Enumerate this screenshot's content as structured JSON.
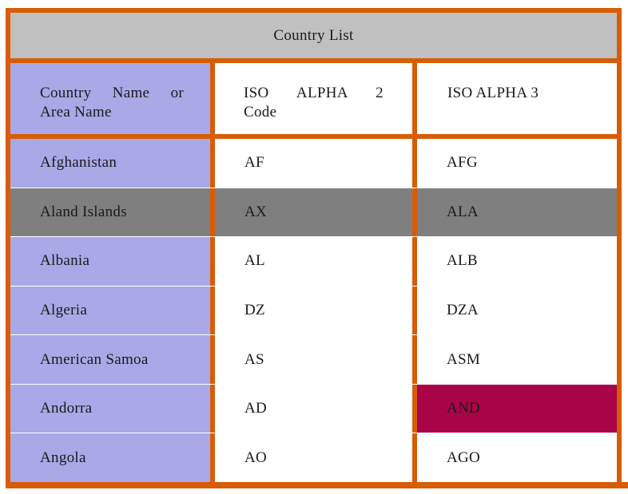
{
  "chart_data": {
    "type": "table",
    "title": "Country List",
    "columns": [
      "Country Name or Area Name",
      "ISO ALPHA 2 Code",
      "ISO ALPHA 3"
    ],
    "rows": [
      [
        "Afghanistan",
        "AF",
        "AFG"
      ],
      [
        "Aland Islands",
        "AX",
        "ALA"
      ],
      [
        "Albania",
        "AL",
        "ALB"
      ],
      [
        "Algeria",
        "DZ",
        "DZA"
      ],
      [
        "American Samoa",
        "AS",
        "ASM"
      ],
      [
        "Andorra",
        "AD",
        "AND"
      ],
      [
        "Angola",
        "AO",
        "AGO"
      ]
    ]
  },
  "header": {
    "col1_line1_words": [
      "Country",
      "Name",
      "or"
    ],
    "col1_line2": "Area Name",
    "col2_line1_words": [
      "ISO",
      "ALPHA",
      "2"
    ],
    "col2_line2": "Code",
    "col3": "ISO ALPHA 3"
  },
  "presentation": {
    "row_variants": [
      "normal",
      "gray",
      "normal",
      "normal",
      "normal",
      "normal",
      "normal"
    ],
    "alpha3_variants": [
      "normal",
      "normal",
      "normal",
      "normal",
      "normal",
      "crimson",
      "normal"
    ],
    "colors": {
      "border_orange": "#D85C06",
      "title_bar_gray": "#C0C0C0",
      "name_column_lavender": "#A9A9E8",
      "highlight_row_gray": "#7F7F7F",
      "highlight_cell_crimson": "#AA0448",
      "text": "#1A1A1A"
    }
  }
}
